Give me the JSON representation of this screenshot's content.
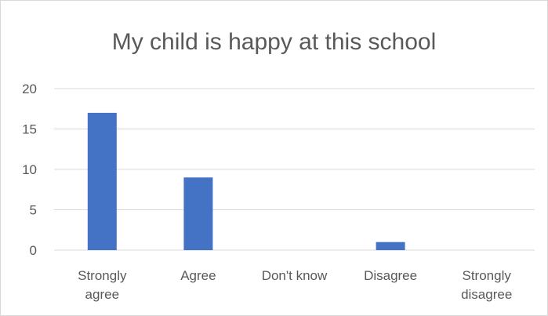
{
  "chart_data": {
    "type": "bar",
    "title": "My child is happy at this school",
    "categories": [
      "Strongly agree",
      "Agree",
      "Don't know",
      "Disagree",
      "Strongly disagree"
    ],
    "category_lines": [
      [
        "Strongly",
        "agree"
      ],
      [
        "Agree"
      ],
      [
        "Don't know"
      ],
      [
        "Disagree"
      ],
      [
        "Strongly",
        "disagree"
      ]
    ],
    "values": [
      17,
      9,
      0,
      1,
      0
    ],
    "ylim": [
      0,
      20
    ],
    "yticks": [
      0,
      5,
      10,
      15,
      20
    ],
    "grid": true,
    "legend": "none",
    "bar_color": "#4472c4",
    "grid_color": "#d9d9d9"
  }
}
